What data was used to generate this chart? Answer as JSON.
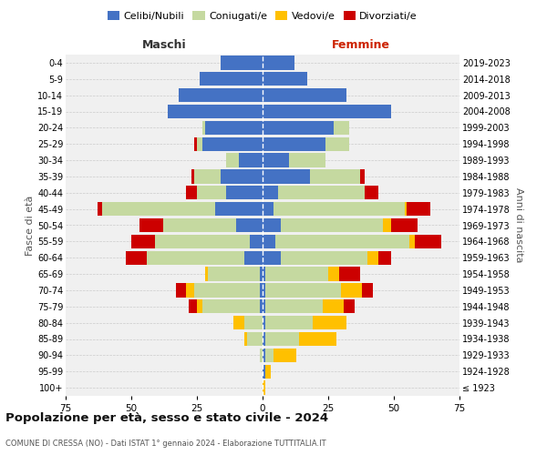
{
  "age_groups": [
    "100+",
    "95-99",
    "90-94",
    "85-89",
    "80-84",
    "75-79",
    "70-74",
    "65-69",
    "60-64",
    "55-59",
    "50-54",
    "45-49",
    "40-44",
    "35-39",
    "30-34",
    "25-29",
    "20-24",
    "15-19",
    "10-14",
    "5-9",
    "0-4"
  ],
  "birth_years": [
    "≤ 1923",
    "1924-1928",
    "1929-1933",
    "1934-1938",
    "1939-1943",
    "1944-1948",
    "1949-1953",
    "1954-1958",
    "1959-1963",
    "1964-1968",
    "1969-1973",
    "1974-1978",
    "1979-1983",
    "1984-1988",
    "1989-1993",
    "1994-1998",
    "1999-2003",
    "2004-2008",
    "2009-2013",
    "2014-2018",
    "2019-2023"
  ],
  "colors": {
    "celibi": "#4472c4",
    "coniugati": "#c5d9a0",
    "vedovi": "#ffc000",
    "divorziati": "#cc0000"
  },
  "maschi": {
    "celibi": [
      0,
      0,
      0,
      0,
      0,
      1,
      1,
      1,
      7,
      5,
      10,
      18,
      14,
      16,
      9,
      23,
      22,
      36,
      32,
      24,
      16
    ],
    "coniugati": [
      0,
      0,
      1,
      6,
      7,
      22,
      25,
      20,
      37,
      36,
      28,
      43,
      11,
      10,
      5,
      2,
      1,
      0,
      0,
      0,
      0
    ],
    "vedovi": [
      0,
      0,
      0,
      1,
      4,
      2,
      3,
      1,
      0,
      0,
      0,
      0,
      0,
      0,
      0,
      0,
      0,
      0,
      0,
      0,
      0
    ],
    "divorziati": [
      0,
      0,
      0,
      0,
      0,
      3,
      4,
      0,
      8,
      9,
      9,
      2,
      4,
      1,
      0,
      1,
      0,
      0,
      0,
      0,
      0
    ]
  },
  "femmine": {
    "celibi": [
      0,
      1,
      1,
      1,
      1,
      1,
      1,
      1,
      7,
      5,
      7,
      4,
      6,
      18,
      10,
      24,
      27,
      49,
      32,
      17,
      12
    ],
    "coniugati": [
      0,
      0,
      3,
      13,
      18,
      22,
      29,
      24,
      33,
      51,
      39,
      50,
      33,
      19,
      14,
      9,
      6,
      0,
      0,
      0,
      0
    ],
    "vedovi": [
      1,
      2,
      9,
      14,
      13,
      8,
      8,
      4,
      4,
      2,
      3,
      1,
      0,
      0,
      0,
      0,
      0,
      0,
      0,
      0,
      0
    ],
    "divorziati": [
      0,
      0,
      0,
      0,
      0,
      4,
      4,
      8,
      5,
      10,
      10,
      9,
      5,
      2,
      0,
      0,
      0,
      0,
      0,
      0,
      0
    ]
  },
  "title": "Popolazione per età, sesso e stato civile - 2024",
  "subtitle": "COMUNE DI CRESSA (NO) - Dati ISTAT 1° gennaio 2024 - Elaborazione TUTTITALIA.IT",
  "xlabel_left": "Maschi",
  "xlabel_right": "Femmine",
  "ylabel_left": "Fasce di età",
  "ylabel_right": "Anni di nascita",
  "xlim": 75,
  "bg_color": "#ffffff",
  "grid_color": "#cccccc",
  "legend_labels": [
    "Celibi/Nubili",
    "Coniugati/e",
    "Vedovi/e",
    "Divorziati/e"
  ]
}
